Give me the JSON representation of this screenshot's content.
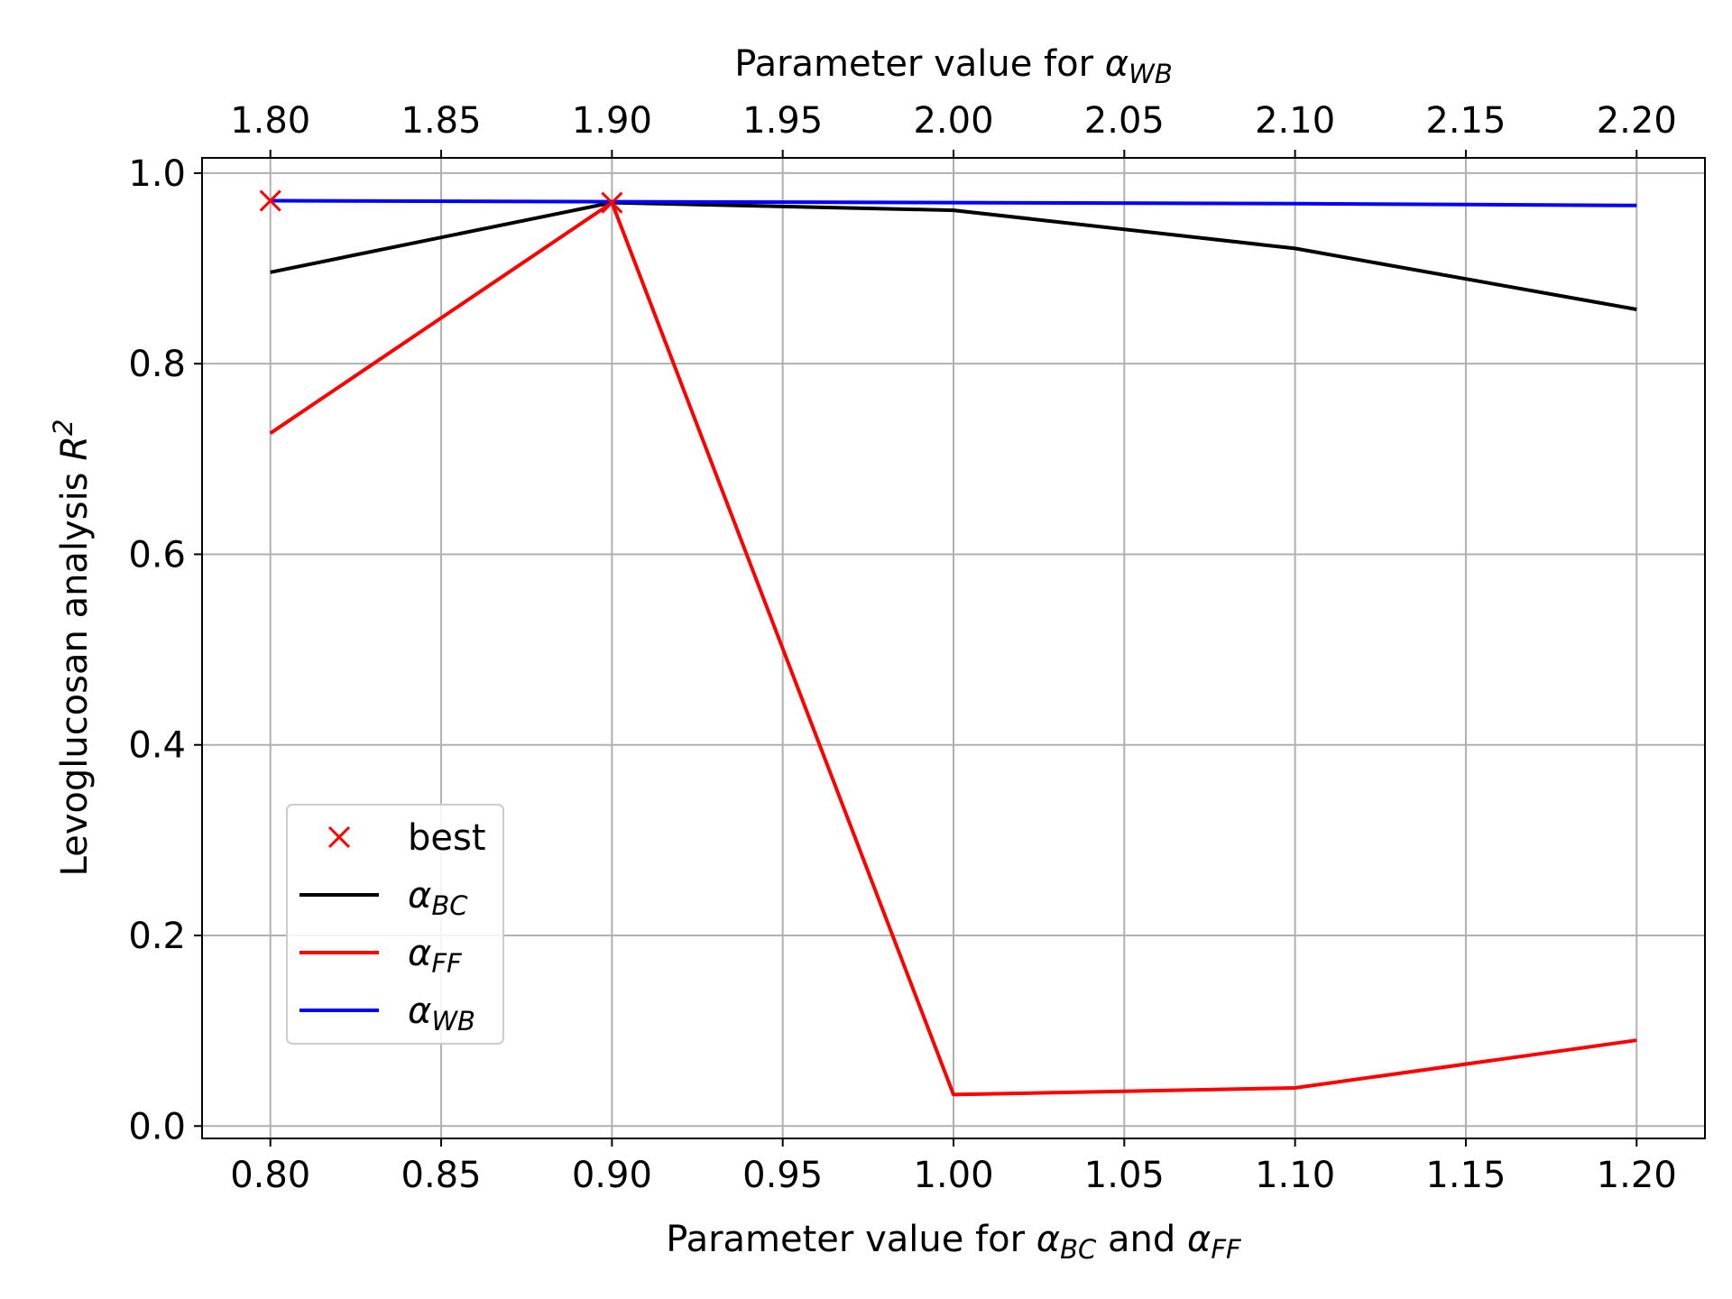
{
  "chart_data": {
    "type": "line",
    "xlabel_bottom": {
      "prefix": "Parameter value for ",
      "sym1": "α",
      "sub1": "BC",
      "mid": " and ",
      "sym2": "α",
      "sub2": "FF"
    },
    "xlabel_top": {
      "prefix": "Parameter value for ",
      "sym": "α",
      "sub": "WB"
    },
    "ylabel": {
      "prefix": "Levoglucosan analysis ",
      "sym": "R",
      "sup": "2"
    },
    "xlim_bottom": [
      0.78,
      1.22
    ],
    "xlim_top": [
      1.78,
      2.22
    ],
    "ylim": [
      -0.013,
      1.016
    ],
    "grid": true,
    "x_ticks_bottom": [
      "0.80",
      "0.85",
      "0.90",
      "0.95",
      "1.00",
      "1.05",
      "1.10",
      "1.15",
      "1.20"
    ],
    "x_ticks_top": [
      "1.80",
      "1.85",
      "1.90",
      "1.95",
      "2.00",
      "2.05",
      "2.10",
      "2.15",
      "2.20"
    ],
    "y_ticks": [
      "0.0",
      "0.2",
      "0.4",
      "0.6",
      "0.8",
      "1.0"
    ],
    "series": [
      {
        "name": "best",
        "sym": "",
        "sub": "",
        "color": "#ff0000",
        "kind": "markers",
        "x": [
          0.8,
          0.9
        ],
        "y": [
          0.971,
          0.969
        ]
      },
      {
        "name": "α_BC",
        "sym": "α",
        "sub": "BC",
        "color": "#000000",
        "kind": "line",
        "x": [
          0.8,
          0.9,
          1.0,
          1.1,
          1.2
        ],
        "y": [
          0.896,
          0.969,
          0.961,
          0.921,
          0.857
        ]
      },
      {
        "name": "α_FF",
        "sym": "α",
        "sub": "FF",
        "color": "#ff0000",
        "kind": "line",
        "x": [
          0.8,
          0.9,
          1.0,
          1.1,
          1.2
        ],
        "y": [
          0.727,
          0.969,
          0.033,
          0.04,
          0.09
        ]
      },
      {
        "name": "α_WB",
        "sym": "α",
        "sub": "WB",
        "color": "#0000ff",
        "kind": "line",
        "x": [
          0.8,
          0.9,
          1.0,
          1.1,
          1.2
        ],
        "y": [
          0.971,
          0.97,
          0.969,
          0.968,
          0.966
        ]
      }
    ],
    "legend": {
      "location": "lower-left"
    }
  }
}
